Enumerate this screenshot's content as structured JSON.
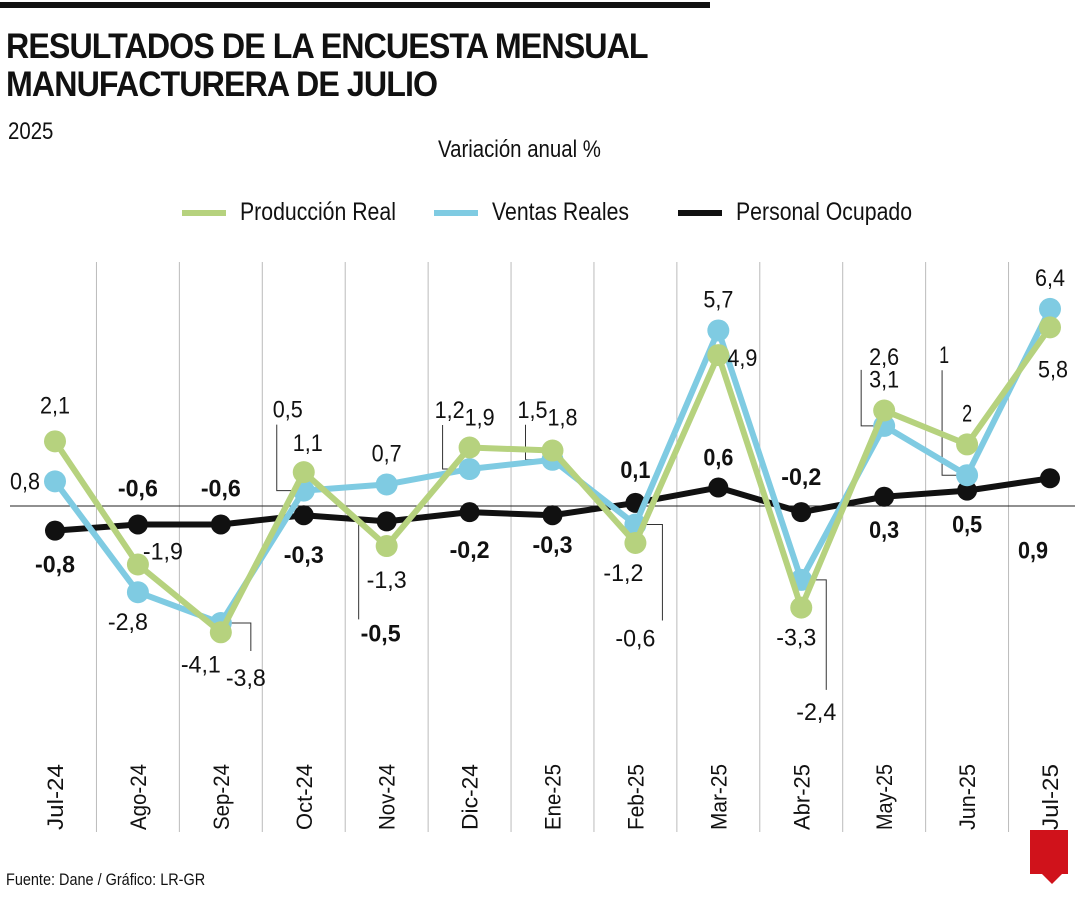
{
  "header": {
    "title_line1": "RESULTADOS DE LA ENCUESTA MENSUAL",
    "title_line2": "MANUFACTURERA DE JULIO",
    "subtitle": "2025"
  },
  "footer": {
    "source": "Fuente: Dane / Gráfico: LR-GR",
    "logo": "LR"
  },
  "chart_data": {
    "type": "line",
    "title": "RESULTADOS DE LA ENCUESTA MENSUAL MANUFACTURERA DE JULIO",
    "subtitle": "2025",
    "ylabel": "Variación anual %",
    "xlabel": "",
    "legend_position": "top",
    "grid": "vertical",
    "categories": [
      "Jul-24",
      "Ago-24",
      "Sep-24",
      "Oct-24",
      "Nov-24",
      "Dic-24",
      "Ene-25",
      "Feb-25",
      "Mar-25",
      "Abr-25",
      "May-25",
      "Jun-25",
      "Jul-25"
    ],
    "series": [
      {
        "name": "Producción Real",
        "color": "#b6d27e",
        "values": [
          2.1,
          -1.9,
          -4.1,
          1.1,
          -1.3,
          1.9,
          1.8,
          -1.2,
          4.9,
          -3.3,
          3.1,
          2,
          5.8
        ],
        "labels": [
          "2,1",
          "-1,9",
          "-4,1",
          "1,1",
          "-1,3",
          "1,9",
          "1,8",
          "-1,2",
          "4,9",
          "-3,3",
          "3,1",
          "2",
          "5,8"
        ]
      },
      {
        "name": "Ventas Reales",
        "color": "#7fcbe2",
        "values": [
          0.8,
          -2.8,
          -3.8,
          0.5,
          0.7,
          1.2,
          1.5,
          -0.6,
          5.7,
          -2.4,
          2.6,
          1,
          6.4
        ],
        "labels": [
          "0,8",
          "-2,8",
          "-3,8",
          "0,5",
          "0,7",
          "1,2",
          "1,5",
          "-0,6",
          "5,7",
          "-2,4",
          "2,6",
          "1",
          "6,4"
        ]
      },
      {
        "name": "Personal Ocupado",
        "color": "#111111",
        "values": [
          -0.8,
          -0.6,
          -0.6,
          -0.3,
          -0.5,
          -0.2,
          -0.3,
          0.1,
          0.6,
          -0.2,
          0.3,
          0.5,
          0.9
        ],
        "labels": [
          "-0,8",
          "-0,6",
          "-0,6",
          "-0,3",
          "-0,5",
          "-0,2",
          "-0,3",
          "0,1",
          "0,6",
          "-0,2",
          "0,3",
          "0,5",
          "0,9"
        ]
      }
    ]
  }
}
